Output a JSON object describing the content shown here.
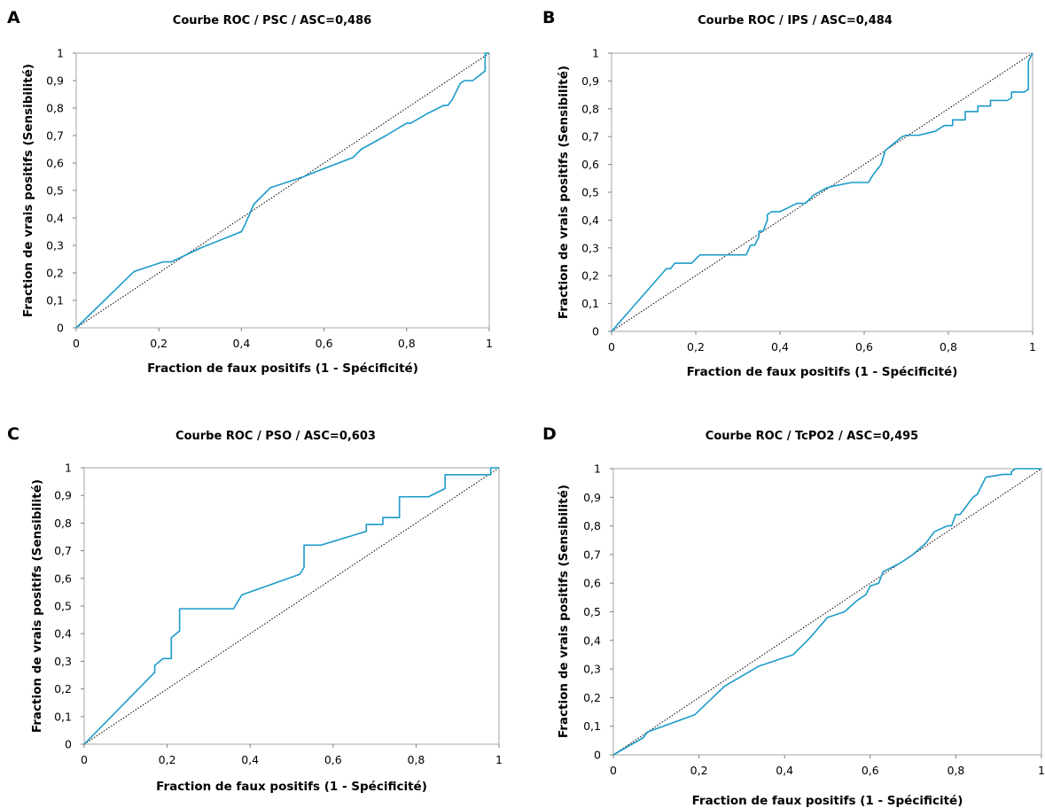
{
  "colors": {
    "roc_line": "#1a9bc9",
    "diagonal": "#000000",
    "plot_border": "#a6a6a6",
    "tick_mark": "#7f7f7f"
  },
  "chart_data": [
    {
      "panel": "A",
      "type": "line",
      "title": "Courbe ROC / PSC / ASC=0,486",
      "xlabel": "Fraction de faux positifs (1 - Spécificité)",
      "ylabel": "Fraction de vrais positifs (Sensibilité)",
      "xlim": [
        0,
        1
      ],
      "ylim": [
        0,
        1
      ],
      "x_ticks": [
        "0",
        "0,2",
        "0,4",
        "0,6",
        "0,8",
        "1"
      ],
      "y_ticks": [
        "0",
        "0,1",
        "0,2",
        "0,3",
        "0,4",
        "0,5",
        "0,6",
        "0,7",
        "0,8",
        "0,9",
        "1"
      ],
      "grid": false,
      "series": [
        {
          "x": [
            0,
            0.14,
            0.21,
            0.23,
            0.3,
            0.4,
            0.41,
            0.43,
            0.47,
            0.5,
            0.55,
            0.6,
            0.67,
            0.69,
            0.75,
            0.8,
            0.81,
            0.85,
            0.89,
            0.9,
            0.91,
            0.92,
            0.93,
            0.94,
            0.96,
            0.99,
            0.99,
            1.0
          ],
          "y": [
            0,
            0.205,
            0.24,
            0.24,
            0.29,
            0.35,
            0.38,
            0.45,
            0.51,
            0.525,
            0.55,
            0.58,
            0.62,
            0.65,
            0.7,
            0.745,
            0.745,
            0.78,
            0.81,
            0.81,
            0.83,
            0.86,
            0.89,
            0.9,
            0.9,
            0.935,
            1.0,
            1.0
          ]
        },
        {
          "x": [
            0,
            1
          ],
          "y": [
            0,
            1
          ]
        }
      ]
    },
    {
      "panel": "B",
      "type": "line",
      "title": "Courbe ROC / IPS / ASC=0,484",
      "xlabel": "Fraction de faux positifs (1 - Spécificité)",
      "ylabel": "Fraction de vrais positifs (Sensibilité)",
      "xlim": [
        0,
        1
      ],
      "ylim": [
        0,
        1
      ],
      "x_ticks": [
        "0",
        "0,2",
        "0,4",
        "0,6",
        "0,8",
        "1"
      ],
      "y_ticks": [
        "0",
        "0,1",
        "0,2",
        "0,3",
        "0,4",
        "0,5",
        "0,6",
        "0,7",
        "0,8",
        "0,9",
        "1"
      ],
      "grid": false,
      "series": [
        {
          "x": [
            0,
            0.13,
            0.14,
            0.15,
            0.19,
            0.2,
            0.21,
            0.27,
            0.32,
            0.33,
            0.34,
            0.35,
            0.35,
            0.36,
            0.37,
            0.37,
            0.38,
            0.4,
            0.44,
            0.46,
            0.48,
            0.51,
            0.52,
            0.57,
            0.61,
            0.62,
            0.64,
            0.65,
            0.69,
            0.7,
            0.73,
            0.77,
            0.79,
            0.81,
            0.81,
            0.84,
            0.84,
            0.87,
            0.87,
            0.9,
            0.9,
            0.94,
            0.95,
            0.95,
            0.98,
            0.99,
            0.99,
            1.0
          ],
          "y": [
            0,
            0.225,
            0.225,
            0.245,
            0.245,
            0.26,
            0.275,
            0.275,
            0.275,
            0.31,
            0.31,
            0.34,
            0.36,
            0.36,
            0.4,
            0.42,
            0.43,
            0.43,
            0.46,
            0.46,
            0.49,
            0.515,
            0.52,
            0.535,
            0.535,
            0.56,
            0.6,
            0.65,
            0.7,
            0.705,
            0.705,
            0.72,
            0.74,
            0.74,
            0.76,
            0.76,
            0.79,
            0.79,
            0.81,
            0.81,
            0.83,
            0.83,
            0.84,
            0.86,
            0.86,
            0.87,
            0.97,
            1.0
          ]
        },
        {
          "x": [
            0,
            1
          ],
          "y": [
            0,
            1
          ]
        }
      ]
    },
    {
      "panel": "C",
      "type": "line",
      "title": "Courbe ROC / PSO / ASC=0,603",
      "xlabel": "Fraction de faux positifs (1 - Spécificité)",
      "ylabel": "Fraction de vrais positifs (Sensibilité)",
      "xlim": [
        0,
        1
      ],
      "ylim": [
        0,
        1
      ],
      "x_ticks": [
        "0",
        "0,2",
        "0,4",
        "0,6",
        "0,8",
        "1"
      ],
      "y_ticks": [
        "0",
        "0,1",
        "0,2",
        "0,3",
        "0,4",
        "0,5",
        "0,6",
        "0,7",
        "0,8",
        "0,9",
        "1"
      ],
      "grid": false,
      "series": [
        {
          "x": [
            0,
            0.17,
            0.17,
            0.19,
            0.21,
            0.21,
            0.23,
            0.23,
            0.36,
            0.38,
            0.52,
            0.53,
            0.53,
            0.57,
            0.68,
            0.68,
            0.72,
            0.72,
            0.76,
            0.76,
            0.83,
            0.87,
            0.87,
            0.98,
            0.98,
            1.0
          ],
          "y": [
            0,
            0.26,
            0.285,
            0.31,
            0.31,
            0.385,
            0.41,
            0.49,
            0.49,
            0.54,
            0.615,
            0.64,
            0.72,
            0.72,
            0.77,
            0.795,
            0.795,
            0.82,
            0.82,
            0.895,
            0.895,
            0.925,
            0.975,
            0.975,
            1.0,
            1.0
          ]
        },
        {
          "x": [
            0,
            1
          ],
          "y": [
            0,
            1
          ]
        }
      ]
    },
    {
      "panel": "D",
      "type": "line",
      "title": "Courbe ROC / TcPO2 / ASC=0,495",
      "xlabel": "Fraction de faux positifs (1 - Spécificité)",
      "ylabel": "Fraction de vrais positifs (Sensibilité)",
      "xlim": [
        0,
        1
      ],
      "ylim": [
        0,
        1
      ],
      "x_ticks": [
        "0",
        "0,2",
        "0,4",
        "0,6",
        "0,8",
        "1"
      ],
      "y_ticks": [
        "0",
        "0,1",
        "0,2",
        "0,3",
        "0,4",
        "0,5",
        "0,6",
        "0,7",
        "0,8",
        "0,9",
        "1"
      ],
      "grid": false,
      "series": [
        {
          "x": [
            0,
            0.07,
            0.08,
            0.19,
            0.26,
            0.34,
            0.42,
            0.46,
            0.5,
            0.54,
            0.57,
            0.59,
            0.6,
            0.62,
            0.63,
            0.67,
            0.69,
            0.7,
            0.73,
            0.75,
            0.78,
            0.79,
            0.8,
            0.81,
            0.82,
            0.83,
            0.84,
            0.85,
            0.86,
            0.87,
            0.91,
            0.93,
            0.93,
            0.94,
            1.0
          ],
          "y": [
            0,
            0.06,
            0.08,
            0.14,
            0.24,
            0.31,
            0.35,
            0.41,
            0.48,
            0.5,
            0.54,
            0.56,
            0.59,
            0.6,
            0.64,
            0.67,
            0.69,
            0.7,
            0.74,
            0.78,
            0.8,
            0.8,
            0.84,
            0.84,
            0.86,
            0.88,
            0.9,
            0.91,
            0.94,
            0.97,
            0.98,
            0.98,
            0.99,
            1.0,
            1.0
          ]
        },
        {
          "x": [
            0,
            1
          ],
          "y": [
            0,
            1
          ]
        }
      ]
    }
  ]
}
